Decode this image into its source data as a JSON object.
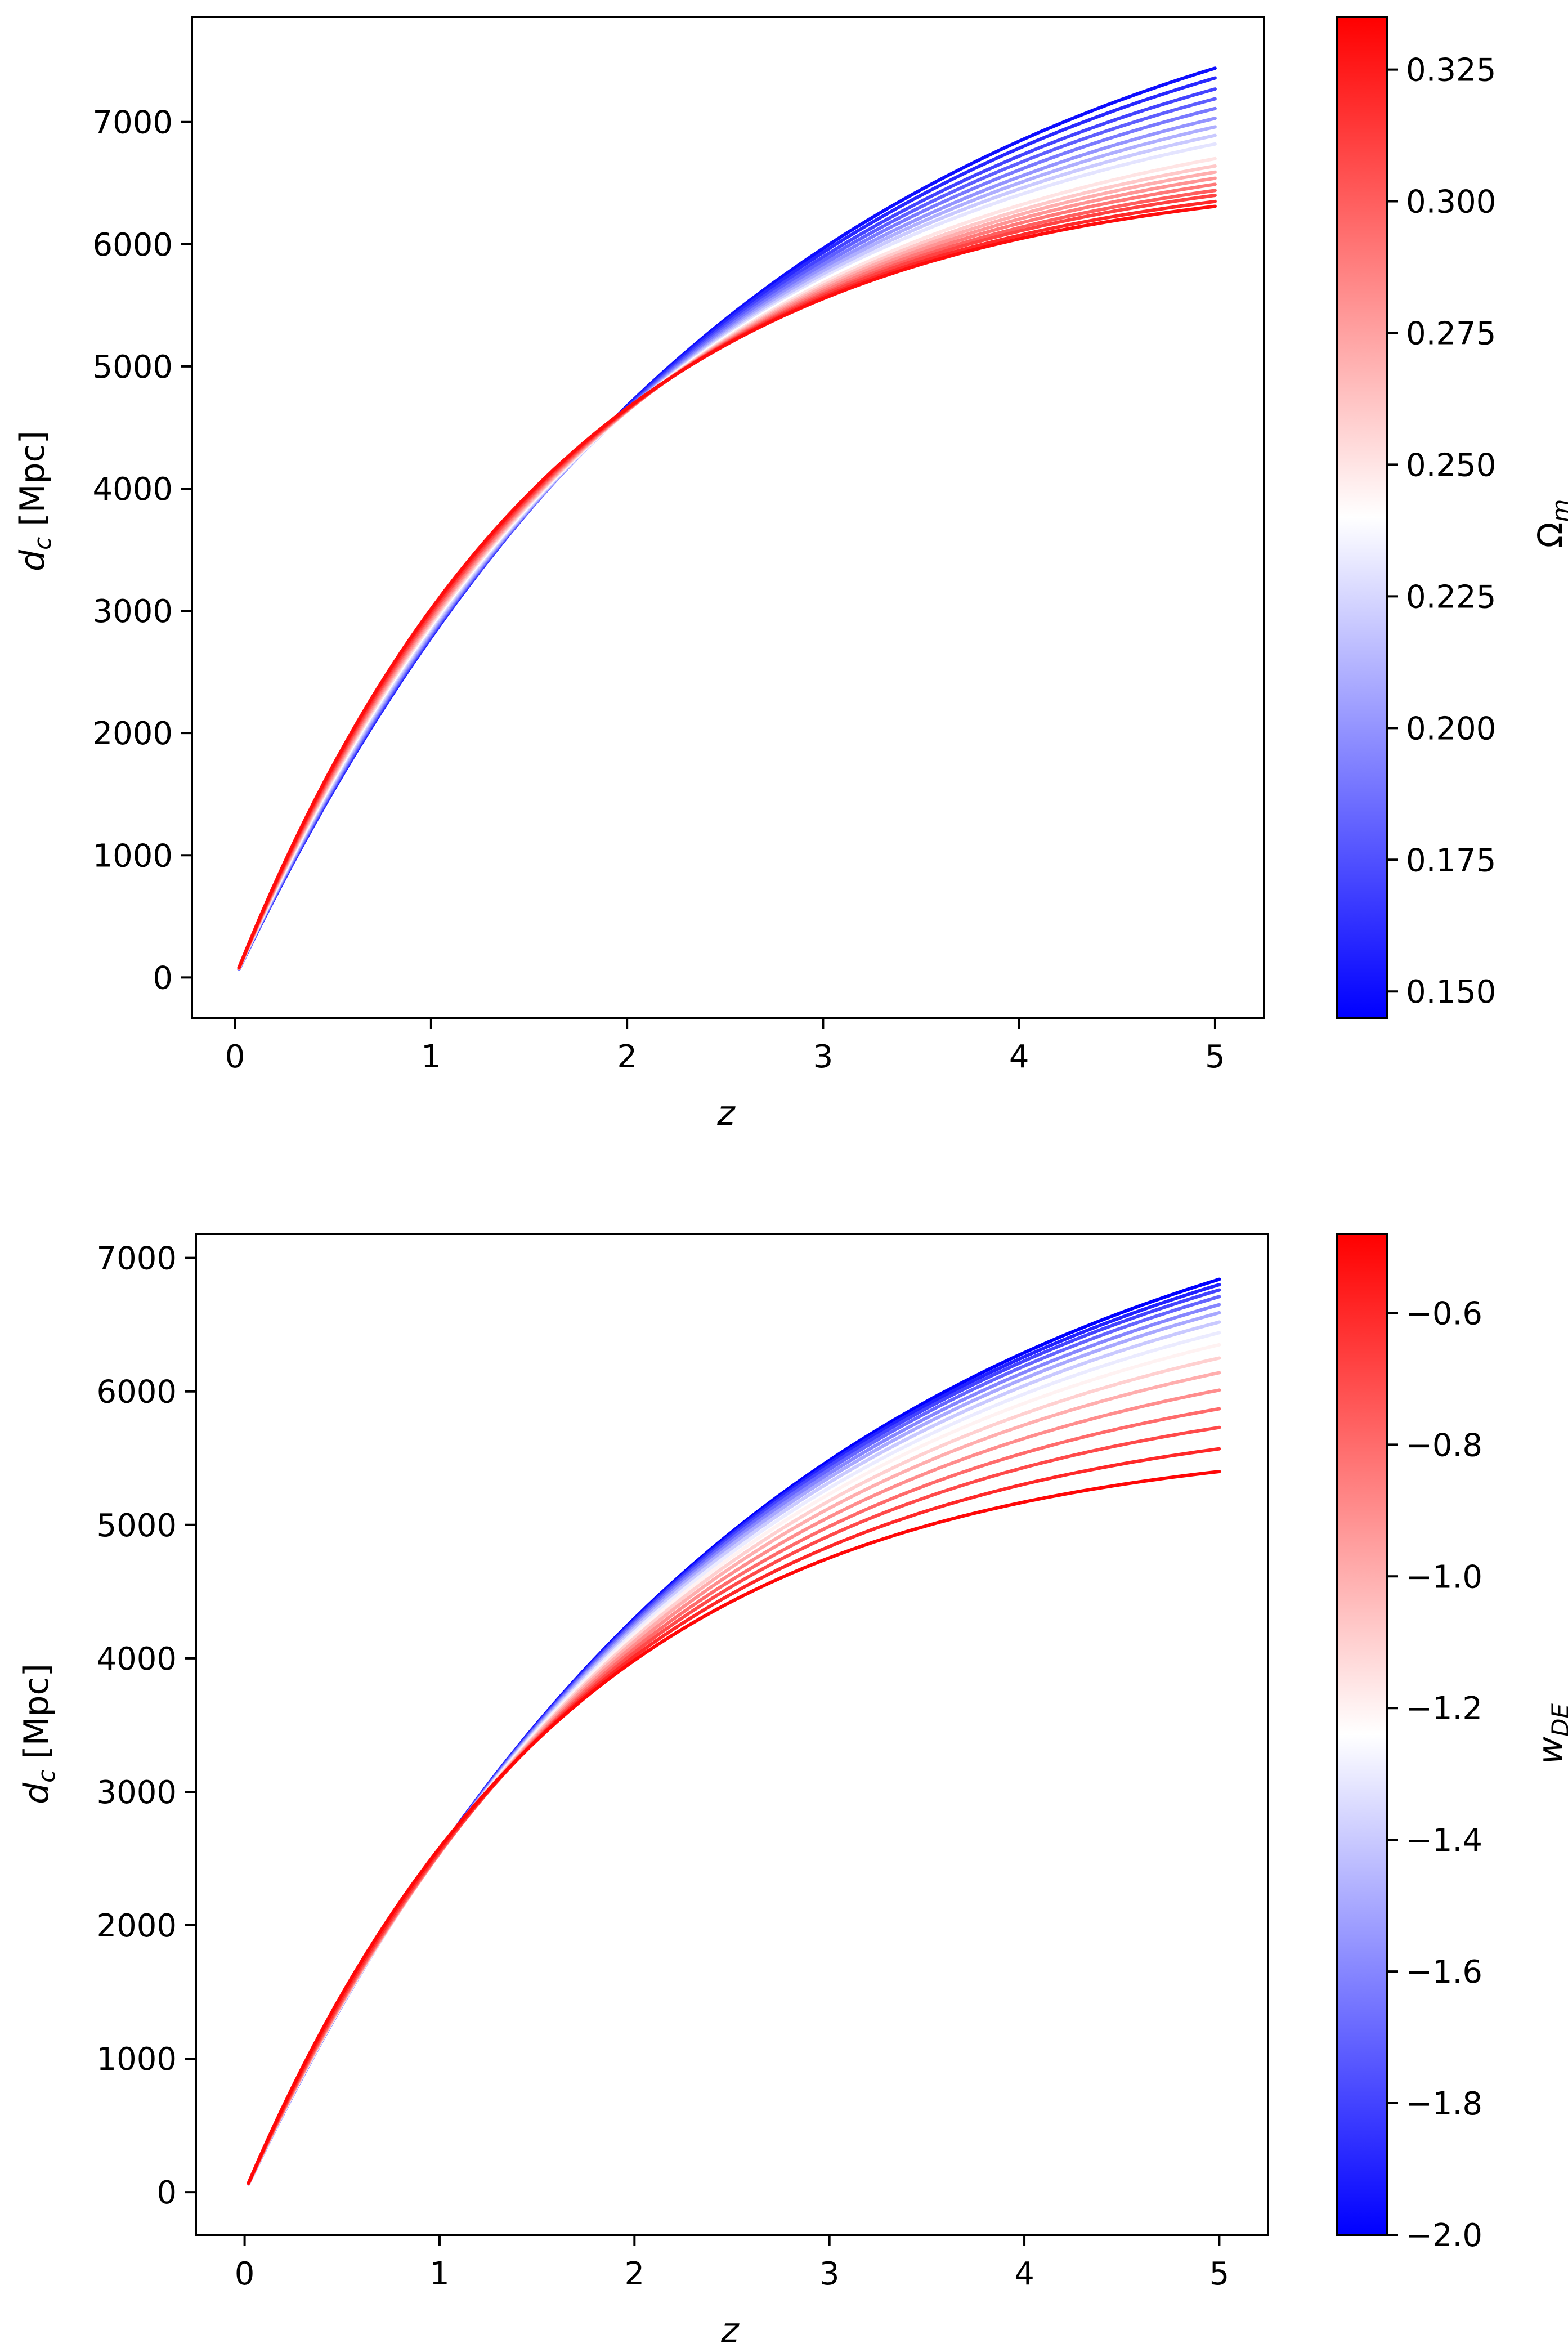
{
  "chart_data": [
    {
      "type": "line",
      "x_range": [
        0.02,
        5.0
      ],
      "xlim": [
        -0.22,
        5.25
      ],
      "ylim": [
        -330,
        7860
      ],
      "xlabel": "z",
      "ylabel_main": "d",
      "ylabel_sub": "c",
      "ylabel_unit": "[Mpc]",
      "xticks": [
        0,
        1,
        2,
        3,
        4,
        5
      ],
      "xtick_labels": [
        "0",
        "1",
        "2",
        "3",
        "4",
        "5"
      ],
      "yticks": [
        0,
        1000,
        2000,
        3000,
        4000,
        5000,
        6000,
        7000
      ],
      "ytick_labels": [
        "0",
        "1000",
        "2000",
        "3000",
        "4000",
        "5000",
        "6000",
        "7000"
      ],
      "colorbar": {
        "label_main": "Ω",
        "label_sub": "m",
        "range": [
          0.145,
          0.335
        ],
        "ticks": [
          0.15,
          0.175,
          0.2,
          0.225,
          0.25,
          0.275,
          0.3,
          0.325
        ],
        "tick_labels": [
          "0.150",
          "0.175",
          "0.200",
          "0.225",
          "0.250",
          "0.275",
          "0.300",
          "0.325"
        ],
        "colors": [
          "#0000ff",
          "#ffffff",
          "#ff0000"
        ]
      },
      "series_param": "Omega_m",
      "series_param_values": [
        0.15,
        0.16,
        0.17,
        0.18,
        0.19,
        0.2,
        0.21,
        0.22,
        0.23,
        0.24,
        0.25,
        0.26,
        0.27,
        0.28,
        0.29,
        0.3,
        0.31,
        0.32,
        0.33
      ],
      "series_endpoints_at_z5": [
        7440,
        7360,
        7270,
        7190,
        7110,
        7030,
        6960,
        6890,
        6820,
        6760,
        6700,
        6640,
        6590,
        6540,
        6490,
        6440,
        6400,
        6350,
        6310
      ]
    },
    {
      "type": "line",
      "x_range": [
        0.02,
        5.0
      ],
      "xlim": [
        -0.25,
        5.25
      ],
      "ylim": [
        -320,
        7180
      ],
      "xlabel": "z",
      "ylabel_main": "d",
      "ylabel_sub": "c",
      "ylabel_unit": "[Mpc]",
      "xticks": [
        0,
        1,
        2,
        3,
        4,
        5
      ],
      "xtick_labels": [
        "0",
        "1",
        "2",
        "3",
        "4",
        "5"
      ],
      "yticks": [
        0,
        1000,
        2000,
        3000,
        4000,
        5000,
        6000,
        7000
      ],
      "ytick_labels": [
        "0",
        "1000",
        "2000",
        "3000",
        "4000",
        "5000",
        "6000",
        "7000"
      ],
      "colorbar": {
        "label_main": "w",
        "label_sub": "DE",
        "range": [
          -2.0,
          -0.48
        ],
        "ticks": [
          -2.0,
          -1.8,
          -1.6,
          -1.4,
          -1.2,
          -1.0,
          -0.8,
          -0.6
        ],
        "tick_labels": [
          "−2.0",
          "−1.8",
          "−1.6",
          "−1.4",
          "−1.2",
          "−1.0",
          "−0.8",
          "−0.6"
        ],
        "colors": [
          "#0000ff",
          "#ffffff",
          "#ff0000"
        ]
      },
      "series_param": "w_DE",
      "series_param_values": [
        -2.0,
        -1.9,
        -1.8,
        -1.7,
        -1.6,
        -1.5,
        -1.4,
        -1.3,
        -1.2,
        -1.1,
        -1.0,
        -0.9,
        -0.8,
        -0.7,
        -0.6,
        -0.5
      ],
      "series_endpoints_at_z5": [
        6840,
        6800,
        6760,
        6710,
        6650,
        6590,
        6520,
        6440,
        6350,
        6250,
        6140,
        6010,
        5870,
        5730,
        5570,
        5400
      ]
    }
  ]
}
